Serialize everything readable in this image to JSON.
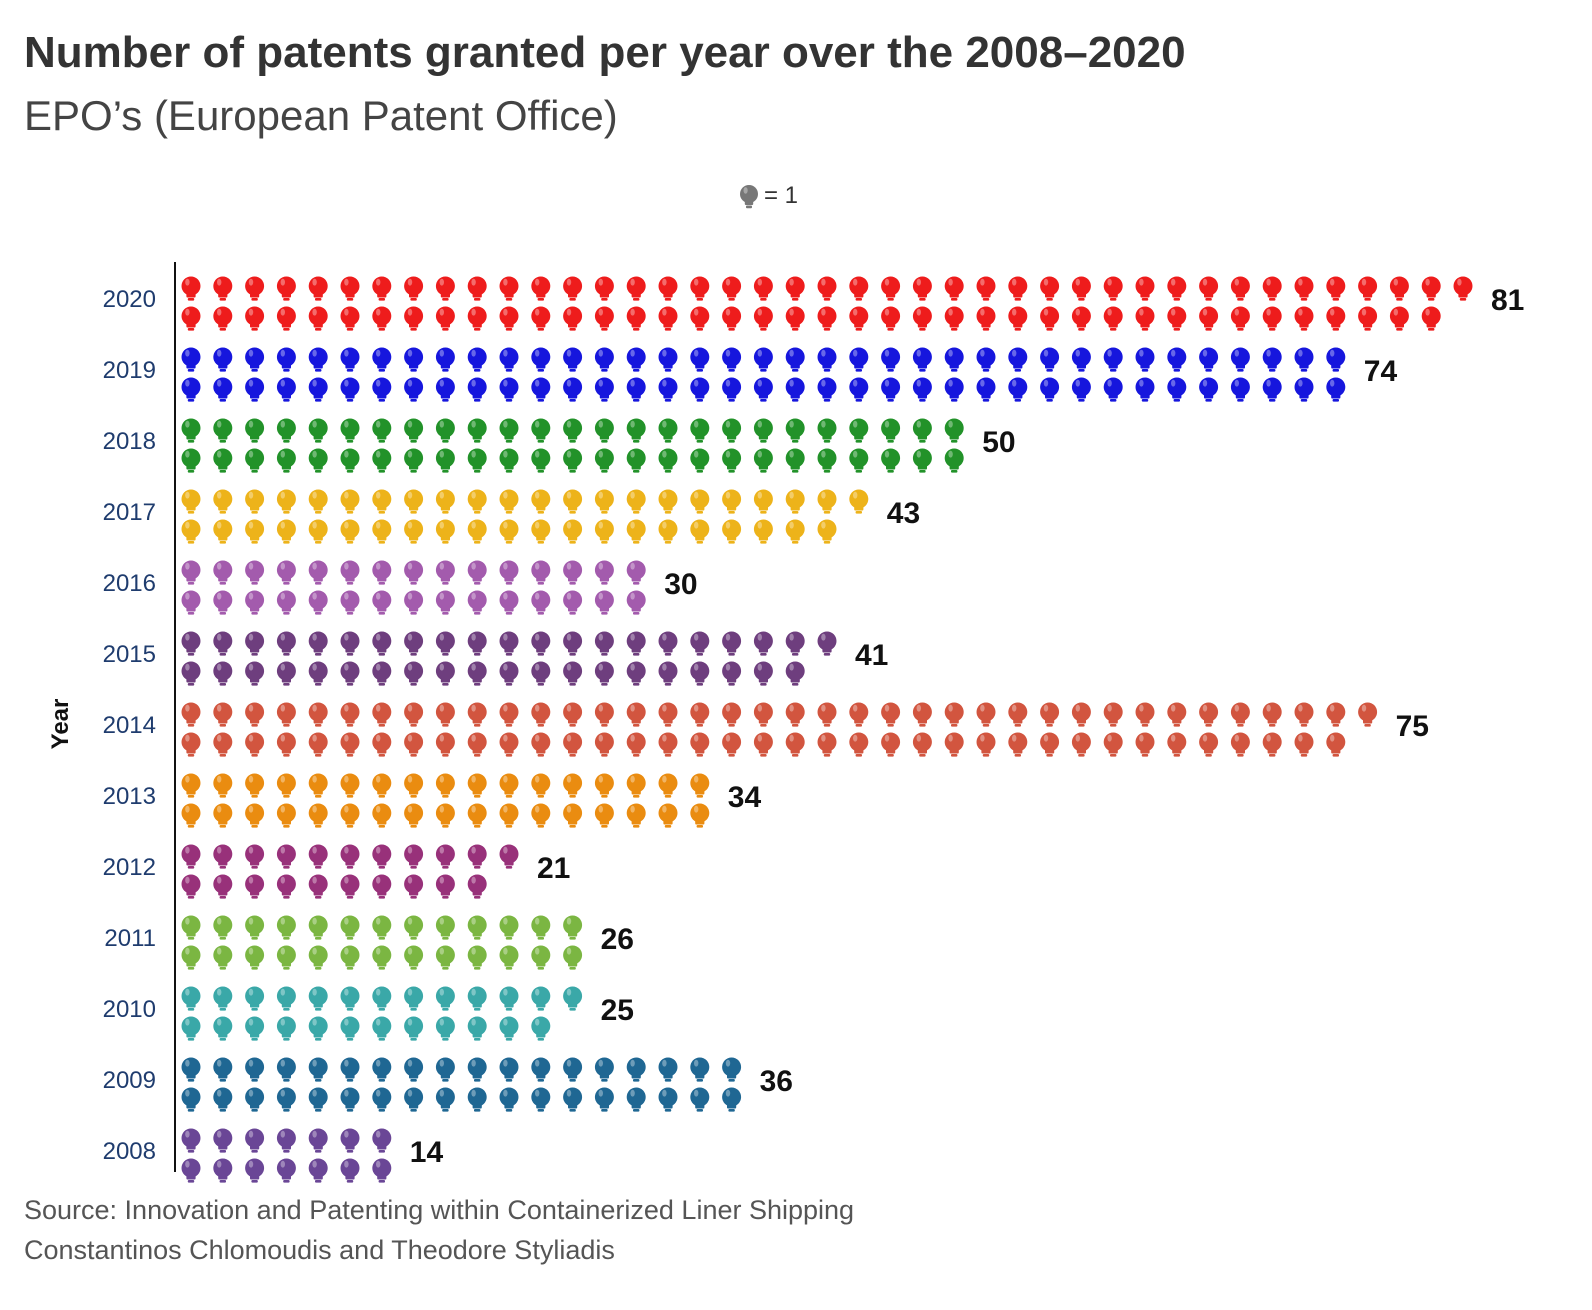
{
  "chart_data": {
    "type": "pictogram-bar",
    "title": "Number of patents granted per year over the 2008–2020",
    "subtitle": "EPO’s (European Patent Office)",
    "legend_label": "= 1",
    "legend_icon": "lightbulb-icon",
    "unit_per_icon": 1,
    "ylabel": "Year",
    "categories": [
      "2020",
      "2019",
      "2018",
      "2017",
      "2016",
      "2015",
      "2014",
      "2013",
      "2012",
      "2011",
      "2010",
      "2009",
      "2008"
    ],
    "values": [
      81,
      74,
      50,
      43,
      30,
      41,
      75,
      34,
      21,
      26,
      25,
      36,
      14
    ],
    "colors": [
      "#ee1c1c",
      "#1616dd",
      "#229229",
      "#edb31a",
      "#a35bad",
      "#6e3e7e",
      "#d2553f",
      "#ea8c10",
      "#98317a",
      "#7bb642",
      "#3aa8a8",
      "#1f6793",
      "#6a4696"
    ],
    "legend_color": "#777777"
  },
  "source": {
    "line1": "Source: Innovation and Patenting within Containerized Liner Shipping",
    "line2": "Constantinos Chlomoudis and Theodore Styliadis"
  }
}
